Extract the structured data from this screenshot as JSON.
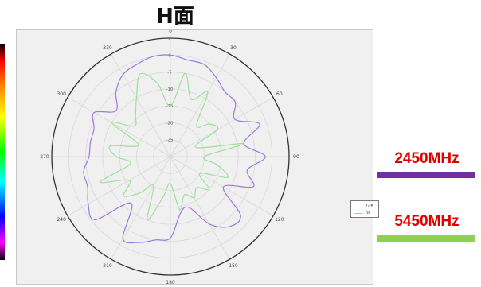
{
  "title": "H面",
  "annotations": {
    "freq_2450": {
      "label": "2450MHz",
      "label_color": "#e00000",
      "bar_color": "#7030a0"
    },
    "freq_5450": {
      "label": "5450MHz",
      "label_color": "#e00000",
      "bar_color": "#92d050"
    }
  },
  "chart_data": {
    "type": "polar-line",
    "title": "H面",
    "angle_ticks": [
      "0",
      "30",
      "60",
      "90",
      "120",
      "150",
      "180",
      "210",
      "240",
      "270",
      "300",
      "330"
    ],
    "radial_ticks": [
      "5",
      "0",
      "-5",
      "-10",
      "-15",
      "-20",
      "-25"
    ],
    "radial_range": [
      -30,
      5
    ],
    "grid": true,
    "legend_position": "right",
    "series": [
      {
        "name": "1dB",
        "color": "#9c7ae0",
        "angles": [
          0,
          10,
          20,
          30,
          40,
          50,
          60,
          70,
          80,
          90,
          100,
          110,
          120,
          130,
          140,
          150,
          160,
          170,
          180,
          190,
          200,
          210,
          220,
          230,
          240,
          250,
          260,
          270,
          280,
          290,
          300,
          310,
          320,
          330,
          340,
          350
        ],
        "values": [
          0,
          -1,
          -1,
          -3,
          -5,
          -5,
          -8,
          -2,
          -8,
          -2,
          -7,
          -4,
          -12,
          -3,
          -3,
          -7,
          -14,
          -13,
          -6,
          -5,
          -3,
          -2,
          -12,
          -1,
          -2,
          -4,
          -4,
          -6,
          -6,
          -6,
          -4,
          -9,
          -5,
          -2,
          -1,
          0
        ]
      },
      {
        "name": "Nil",
        "color": "#9ee09a",
        "angles": [
          0,
          10,
          20,
          30,
          40,
          50,
          60,
          70,
          80,
          90,
          100,
          110,
          120,
          130,
          140,
          150,
          160,
          170,
          180,
          190,
          200,
          210,
          220,
          230,
          240,
          250,
          260,
          270,
          280,
          290,
          300,
          310,
          320,
          330,
          340,
          350
        ],
        "values": [
          -15,
          -5,
          -12,
          -8,
          -18,
          -15,
          -14,
          -22,
          -8,
          -20,
          -16,
          -12,
          -20,
          -15,
          -18,
          -16,
          -18,
          -14,
          -22,
          -18,
          -10,
          -20,
          -16,
          -12,
          -16,
          -8,
          -18,
          -14,
          -12,
          -20,
          -10,
          -16,
          -14,
          -10,
          -4,
          -8
        ]
      }
    ]
  }
}
